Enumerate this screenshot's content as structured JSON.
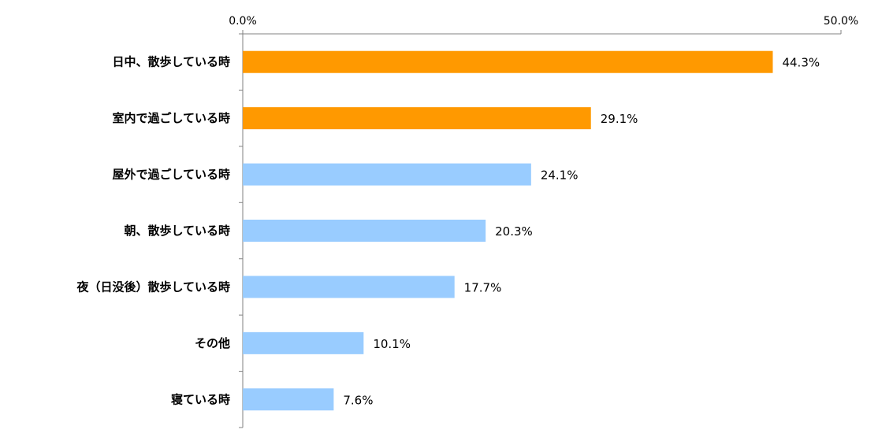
{
  "chart_data": {
    "type": "bar",
    "orientation": "horizontal",
    "categories": [
      "日中、散歩している時",
      "室内で過ごしている時",
      "屋外で過ごしている時",
      "朝、散歩している時",
      "夜（日没後）散歩している時",
      "その他",
      "寝ている時"
    ],
    "values": [
      44.3,
      29.1,
      24.1,
      20.3,
      17.7,
      10.1,
      7.6
    ],
    "value_labels": [
      "44.3%",
      "29.1%",
      "24.1%",
      "20.3%",
      "17.7%",
      "10.1%",
      "7.6%"
    ],
    "bar_colors": [
      "#ff9900",
      "#ff9900",
      "#99ccff",
      "#99ccff",
      "#99ccff",
      "#99ccff",
      "#99ccff"
    ],
    "xlim": [
      0,
      50
    ],
    "x_ticks": [
      "0.0%",
      "50.0%"
    ],
    "x_axis_position": "top",
    "grid": false,
    "title": "",
    "xlabel": "",
    "ylabel": ""
  }
}
